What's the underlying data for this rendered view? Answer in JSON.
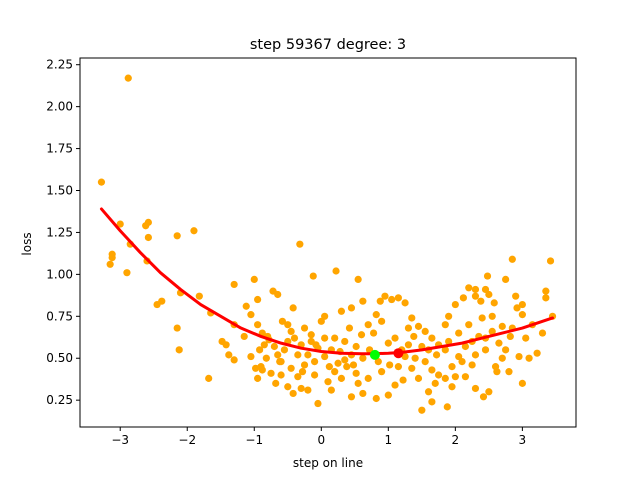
{
  "chart_data": {
    "type": "scatter",
    "title": "step 59367   degree: 3",
    "xlabel": "step on line",
    "ylabel": "loss",
    "xlim": [
      -3.6,
      3.8
    ],
    "ylim": [
      0.09,
      2.29
    ],
    "xticks": [
      -3,
      -2,
      -1,
      0,
      1,
      2,
      3
    ],
    "xtick_labels": [
      "−3",
      "−2",
      "−1",
      "0",
      "1",
      "2",
      "3"
    ],
    "yticks": [
      0.25,
      0.5,
      0.75,
      1.0,
      1.25,
      1.5,
      1.75,
      2.0,
      2.25
    ],
    "ytick_labels": [
      "0.25",
      "0.50",
      "0.75",
      "1.00",
      "1.25",
      "1.50",
      "1.75",
      "2.00",
      "2.25"
    ],
    "grid": false,
    "colors": {
      "points": "#ffa500",
      "fit_line": "#ff0000",
      "marker_green": "#00ff00",
      "marker_red": "#ff0000"
    },
    "points": [
      [
        -3.28,
        1.55
      ],
      [
        -2.88,
        2.17
      ],
      [
        -3.0,
        1.3
      ],
      [
        -3.12,
        1.12
      ],
      [
        -3.15,
        1.06
      ],
      [
        -3.12,
        1.1
      ],
      [
        -2.9,
        1.01
      ],
      [
        -2.85,
        1.18
      ],
      [
        -2.62,
        1.29
      ],
      [
        -2.58,
        1.31
      ],
      [
        -2.58,
        1.22
      ],
      [
        -2.6,
        1.08
      ],
      [
        -2.45,
        0.82
      ],
      [
        -2.38,
        0.84
      ],
      [
        -2.15,
        1.23
      ],
      [
        -1.9,
        1.26
      ],
      [
        -2.1,
        0.89
      ],
      [
        -2.15,
        0.68
      ],
      [
        -2.12,
        0.55
      ],
      [
        -1.82,
        0.87
      ],
      [
        -1.65,
        0.77
      ],
      [
        -1.48,
        0.6
      ],
      [
        -1.42,
        0.58
      ],
      [
        -1.38,
        0.52
      ],
      [
        -1.3,
        0.49
      ],
      [
        -1.68,
        0.38
      ],
      [
        -1.3,
        0.94
      ],
      [
        -1.12,
        0.81
      ],
      [
        -1.05,
        0.76
      ],
      [
        -1.0,
        0.97
      ],
      [
        -0.95,
        0.85
      ],
      [
        -0.85,
        0.58
      ],
      [
        -0.8,
        0.63
      ],
      [
        -0.72,
        0.9
      ],
      [
        -0.65,
        0.88
      ],
      [
        -0.5,
        0.7
      ],
      [
        -0.42,
        0.8
      ],
      [
        -0.32,
        1.18
      ],
      [
        -0.12,
        0.99
      ],
      [
        0.22,
        1.02
      ],
      [
        0.55,
        0.97
      ],
      [
        0.62,
        0.84
      ],
      [
        0.42,
        0.68
      ],
      [
        0.2,
        0.62
      ],
      [
        0.05,
        0.75
      ],
      [
        -0.05,
        0.56
      ],
      [
        -0.15,
        0.6
      ],
      [
        -0.25,
        0.46
      ],
      [
        -0.35,
        0.52
      ],
      [
        -0.6,
        0.48
      ],
      [
        -0.75,
        0.41
      ],
      [
        -0.88,
        0.43
      ],
      [
        -0.95,
        0.38
      ],
      [
        -0.98,
        0.44
      ],
      [
        -0.68,
        0.35
      ],
      [
        -0.5,
        0.33
      ],
      [
        -0.42,
        0.29
      ],
      [
        -0.3,
        0.32
      ],
      [
        -0.2,
        0.31
      ],
      [
        -0.05,
        0.23
      ],
      [
        0.1,
        0.36
      ],
      [
        0.2,
        0.42
      ],
      [
        0.38,
        0.45
      ],
      [
        0.52,
        0.41
      ],
      [
        0.62,
        0.29
      ],
      [
        0.82,
        0.26
      ],
      [
        1.0,
        0.28
      ],
      [
        1.1,
        0.34
      ],
      [
        1.22,
        0.37
      ],
      [
        1.35,
        0.44
      ],
      [
        1.5,
        0.19
      ],
      [
        1.65,
        0.24
      ],
      [
        1.88,
        0.21
      ],
      [
        1.95,
        0.33
      ],
      [
        2.15,
        0.39
      ],
      [
        2.3,
        0.32
      ],
      [
        2.42,
        0.27
      ],
      [
        2.5,
        0.3
      ],
      [
        2.62,
        0.42
      ],
      [
        2.8,
        0.42
      ],
      [
        3.0,
        0.35
      ],
      [
        3.1,
        0.5
      ],
      [
        3.22,
        0.53
      ],
      [
        3.3,
        0.65
      ],
      [
        3.35,
        0.9
      ],
      [
        3.35,
        0.86
      ],
      [
        3.42,
        1.08
      ],
      [
        3.45,
        0.75
      ],
      [
        3.0,
        0.76
      ],
      [
        2.9,
        0.87
      ],
      [
        2.92,
        0.8
      ],
      [
        2.82,
        0.63
      ],
      [
        2.75,
        0.55
      ],
      [
        2.7,
        0.5
      ],
      [
        2.6,
        0.45
      ],
      [
        2.55,
        0.66
      ],
      [
        2.45,
        0.55
      ],
      [
        2.4,
        0.74
      ],
      [
        2.3,
        0.87
      ],
      [
        2.38,
        0.84
      ],
      [
        2.5,
        0.88
      ],
      [
        2.58,
        0.83
      ],
      [
        2.75,
        0.97
      ],
      [
        2.85,
        1.09
      ],
      [
        2.48,
        0.99
      ],
      [
        2.45,
        0.91
      ],
      [
        2.3,
        0.91
      ],
      [
        2.2,
        0.92
      ],
      [
        2.12,
        0.86
      ],
      [
        2.0,
        0.82
      ],
      [
        1.9,
        0.75
      ],
      [
        1.85,
        0.7
      ],
      [
        1.75,
        0.58
      ],
      [
        1.65,
        0.62
      ],
      [
        1.55,
        0.66
      ],
      [
        1.45,
        0.69
      ],
      [
        1.35,
        0.74
      ],
      [
        1.25,
        0.83
      ],
      [
        1.15,
        0.86
      ],
      [
        1.05,
        0.85
      ],
      [
        0.95,
        0.87
      ],
      [
        0.88,
        0.84
      ],
      [
        0.82,
        0.76
      ],
      [
        1.0,
        0.59
      ],
      [
        1.1,
        0.62
      ],
      [
        1.2,
        0.55
      ],
      [
        1.3,
        0.58
      ],
      [
        1.4,
        0.5
      ],
      [
        1.55,
        0.48
      ],
      [
        1.65,
        0.43
      ],
      [
        1.75,
        0.4
      ],
      [
        1.85,
        0.38
      ],
      [
        1.95,
        0.45
      ],
      [
        2.05,
        0.51
      ],
      [
        2.15,
        0.57
      ],
      [
        2.25,
        0.6
      ],
      [
        2.35,
        0.63
      ],
      [
        0.72,
        0.55
      ],
      [
        0.62,
        0.5
      ],
      [
        0.52,
        0.57
      ],
      [
        0.45,
        0.52
      ],
      [
        0.35,
        0.49
      ],
      [
        0.25,
        0.47
      ],
      [
        0.15,
        0.55
      ],
      [
        0.05,
        0.51
      ],
      [
        -0.1,
        0.48
      ],
      [
        -0.2,
        0.52
      ],
      [
        -0.3,
        0.58
      ],
      [
        -0.4,
        0.62
      ],
      [
        -0.5,
        0.6
      ],
      [
        -0.55,
        0.55
      ],
      [
        -0.65,
        0.52
      ],
      [
        -0.7,
        0.57
      ],
      [
        -0.78,
        0.61
      ],
      [
        -0.88,
        0.65
      ],
      [
        -0.95,
        0.7
      ],
      [
        -0.58,
        0.72
      ],
      [
        -0.25,
        0.68
      ],
      [
        0.0,
        0.72
      ],
      [
        0.3,
        0.78
      ],
      [
        0.45,
        0.8
      ],
      [
        0.7,
        0.7
      ],
      [
        0.78,
        0.65
      ],
      [
        0.9,
        0.72
      ],
      [
        1.3,
        0.68
      ],
      [
        1.6,
        0.55
      ],
      [
        1.85,
        0.55
      ],
      [
        2.05,
        0.65
      ],
      [
        2.2,
        0.7
      ],
      [
        2.45,
        0.62
      ],
      [
        2.65,
        0.59
      ],
      [
        2.85,
        0.68
      ],
      [
        3.05,
        0.62
      ],
      [
        3.15,
        0.7
      ],
      [
        2.95,
        0.51
      ],
      [
        3.0,
        0.82
      ],
      [
        -0.1,
        0.4
      ],
      [
        0.3,
        0.38
      ],
      [
        0.55,
        0.35
      ],
      [
        0.7,
        0.38
      ],
      [
        0.9,
        0.42
      ],
      [
        1.15,
        0.45
      ],
      [
        1.45,
        0.38
      ],
      [
        1.6,
        0.3
      ],
      [
        1.7,
        0.35
      ],
      [
        2.0,
        0.39
      ],
      [
        2.25,
        0.46
      ],
      [
        -1.3,
        0.7
      ],
      [
        -1.15,
        0.63
      ],
      [
        -1.05,
        0.51
      ],
      [
        -0.92,
        0.55
      ],
      [
        -0.6,
        0.4
      ],
      [
        -0.35,
        0.39
      ],
      [
        0.15,
        0.31
      ],
      [
        0.45,
        0.27
      ],
      [
        0.35,
        0.6
      ],
      [
        0.05,
        0.62
      ],
      [
        -0.15,
        0.64
      ],
      [
        -0.45,
        0.66
      ],
      [
        -0.82,
        0.5
      ],
      [
        1.9,
        0.6
      ],
      [
        2.1,
        0.48
      ],
      [
        2.3,
        0.52
      ],
      [
        1.02,
        0.46
      ],
      [
        1.25,
        0.51
      ],
      [
        1.5,
        0.57
      ],
      [
        0.6,
        0.64
      ],
      [
        0.12,
        0.45
      ],
      [
        -0.45,
        0.44
      ],
      [
        -0.62,
        0.48
      ],
      [
        -0.28,
        0.42
      ],
      [
        0.85,
        0.48
      ],
      [
        1.38,
        0.63
      ],
      [
        2.55,
        0.75
      ],
      [
        1.72,
        0.52
      ],
      [
        0.48,
        0.46
      ],
      [
        -0.08,
        0.58
      ],
      [
        0.28,
        0.54
      ],
      [
        -0.9,
        0.45
      ],
      [
        2.7,
        0.69
      ]
    ],
    "fit_curve": {
      "name": "",
      "degree": 3,
      "samples_x": [
        -3.28,
        -3.0,
        -2.7,
        -2.4,
        -2.1,
        -1.8,
        -1.5,
        -1.2,
        -0.9,
        -0.6,
        -0.3,
        0.0,
        0.3,
        0.6,
        0.8,
        1.0,
        1.2,
        1.5,
        1.8,
        2.1,
        2.4,
        2.7,
        3.0,
        3.3,
        3.45
      ],
      "samples_y": [
        1.39,
        1.26,
        1.13,
        1.01,
        0.91,
        0.82,
        0.75,
        0.68,
        0.63,
        0.59,
        0.56,
        0.54,
        0.53,
        0.527,
        0.527,
        0.53,
        0.535,
        0.55,
        0.57,
        0.59,
        0.62,
        0.65,
        0.68,
        0.72,
        0.74
      ]
    },
    "markers": [
      {
        "name": "green",
        "x": 0.8,
        "y": 0.52,
        "color": "#00ff00"
      },
      {
        "name": "red",
        "x": 1.15,
        "y": 0.53,
        "color": "#ff0000"
      }
    ]
  }
}
